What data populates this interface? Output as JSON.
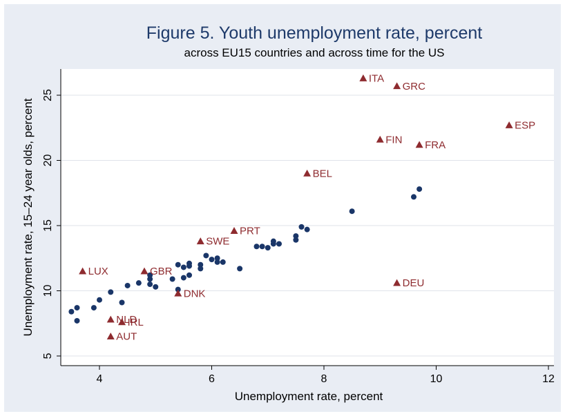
{
  "chart_data": {
    "type": "scatter",
    "title": "Figure 5.  Youth unemployment rate, percent",
    "subtitle": "across EU15 countries and across time for the US",
    "xlabel": "Unemployment rate, percent",
    "ylabel": "Unemployment rate, 15–24 year olds, percent",
    "xlim": [
      3.4,
      12.0
    ],
    "ylim": [
      4.3,
      27.0
    ],
    "xticks": [
      4,
      6,
      8,
      10,
      12
    ],
    "yticks": [
      5,
      10,
      15,
      20,
      25
    ],
    "grid": "horizontal",
    "colors": {
      "outer_background": "#e9edf4",
      "plot_background": "#ffffff",
      "us_points": "#1a3668",
      "eu_points": "#8e2b2f",
      "title_text": "#1e3a6a",
      "gridline": "#dfe3ea"
    },
    "series": [
      {
        "marker": "circle",
        "points": [
          [
            3.5,
            8.4
          ],
          [
            3.6,
            8.7
          ],
          [
            3.6,
            7.7
          ],
          [
            3.9,
            8.7
          ],
          [
            4.0,
            9.3
          ],
          [
            4.2,
            9.9
          ],
          [
            4.4,
            9.1
          ],
          [
            4.5,
            10.4
          ],
          [
            4.7,
            10.6
          ],
          [
            4.9,
            11.2
          ],
          [
            4.9,
            10.9
          ],
          [
            4.9,
            10.5
          ],
          [
            5.0,
            10.3
          ],
          [
            5.3,
            10.9
          ],
          [
            5.4,
            12.0
          ],
          [
            5.4,
            10.1
          ],
          [
            5.5,
            11.8
          ],
          [
            5.5,
            11.0
          ],
          [
            5.6,
            12.1
          ],
          [
            5.6,
            11.9
          ],
          [
            5.6,
            11.2
          ],
          [
            5.8,
            12.0
          ],
          [
            5.8,
            11.7
          ],
          [
            5.9,
            12.7
          ],
          [
            6.0,
            12.4
          ],
          [
            6.1,
            12.5
          ],
          [
            6.1,
            12.2
          ],
          [
            6.2,
            12.2
          ],
          [
            6.5,
            11.7
          ],
          [
            6.8,
            13.4
          ],
          [
            6.9,
            13.4
          ],
          [
            7.0,
            13.3
          ],
          [
            7.1,
            13.8
          ],
          [
            7.1,
            13.6
          ],
          [
            7.2,
            13.6
          ],
          [
            7.5,
            14.2
          ],
          [
            7.5,
            13.9
          ],
          [
            7.6,
            14.9
          ],
          [
            7.7,
            14.7
          ],
          [
            8.5,
            16.1
          ],
          [
            9.6,
            17.2
          ],
          [
            9.7,
            17.8
          ]
        ]
      },
      {
        "marker": "triangle",
        "points": [
          {
            "x": 8.7,
            "y": 26.3,
            "label": "ITA"
          },
          {
            "x": 9.3,
            "y": 25.7,
            "label": "GRC"
          },
          {
            "x": 11.3,
            "y": 22.7,
            "label": "ESP"
          },
          {
            "x": 9.0,
            "y": 21.6,
            "label": "FIN"
          },
          {
            "x": 9.7,
            "y": 21.2,
            "label": "FRA"
          },
          {
            "x": 7.7,
            "y": 19.0,
            "label": "BEL"
          },
          {
            "x": 6.4,
            "y": 14.6,
            "label": "PRT"
          },
          {
            "x": 5.8,
            "y": 13.8,
            "label": "SWE"
          },
          {
            "x": 3.7,
            "y": 11.5,
            "label": "LUX"
          },
          {
            "x": 4.8,
            "y": 11.5,
            "label": "GBR"
          },
          {
            "x": 9.3,
            "y": 10.6,
            "label": "DEU"
          },
          {
            "x": 5.4,
            "y": 9.8,
            "label": "DNK"
          },
          {
            "x": 4.2,
            "y": 7.8,
            "label": "NLD"
          },
          {
            "x": 4.4,
            "y": 7.6,
            "label": "IRL"
          },
          {
            "x": 4.2,
            "y": 6.5,
            "label": "AUT"
          }
        ]
      }
    ]
  }
}
